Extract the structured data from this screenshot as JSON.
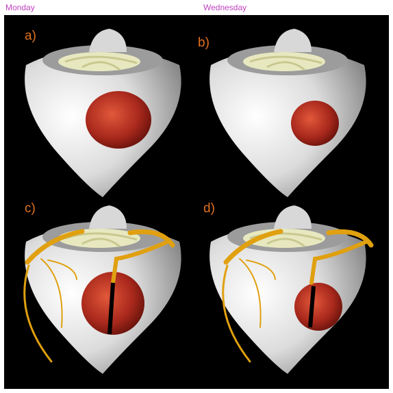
{
  "header": {
    "left": "Monday",
    "right": "Wednesday"
  },
  "panels": [
    "a)",
    "b)",
    "c)",
    "d)"
  ]
}
